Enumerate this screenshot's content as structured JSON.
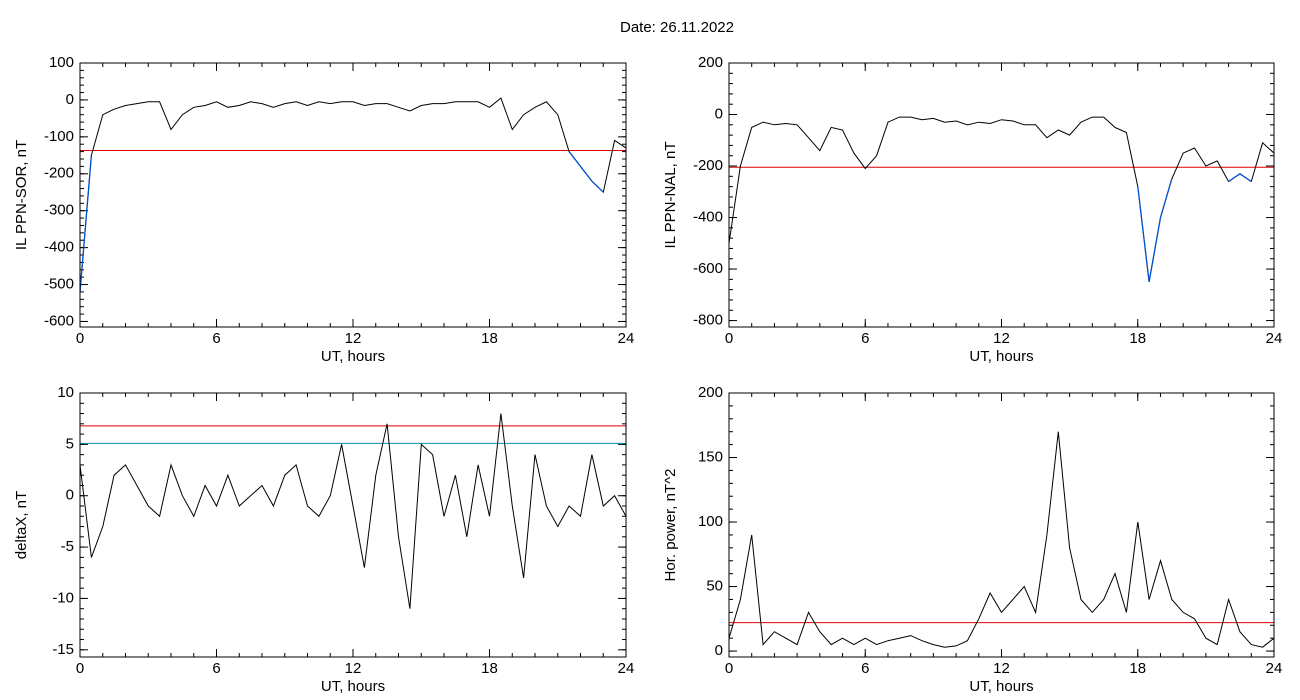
{
  "title": "Date:  26.11.2022",
  "chart_data": [
    {
      "type": "line",
      "xlabel": "UT, hours",
      "ylabel": "IL PPN-SOR, nT",
      "xlim": [
        0,
        24
      ],
      "xticks": [
        0,
        6,
        12,
        18,
        24
      ],
      "ylim": [
        -615,
        100
      ],
      "yticks": [
        100,
        0,
        -100,
        -200,
        -300,
        -400,
        -500,
        -600
      ],
      "x": [
        0,
        0.5,
        1,
        1.5,
        2,
        2.5,
        3,
        3.5,
        4,
        4.5,
        5,
        5.5,
        6,
        6.5,
        7,
        7.5,
        8,
        8.5,
        9,
        9.5,
        10,
        10.5,
        11,
        11.5,
        12,
        12.5,
        13,
        13.5,
        14,
        14.5,
        15,
        15.5,
        16,
        16.5,
        17,
        17.5,
        18,
        18.5,
        19,
        19.5,
        20,
        20.5,
        21,
        21.5,
        22,
        22.5,
        23,
        23.5,
        24
      ],
      "series": [
        {
          "color": "#000000",
          "below_color": "#0050d0",
          "values": [
            -520,
            -150,
            -40,
            -25,
            -15,
            -10,
            -5,
            -5,
            -80,
            -40,
            -20,
            -15,
            -5,
            -20,
            -15,
            -5,
            -10,
            -20,
            -10,
            -5,
            -15,
            -5,
            -10,
            -5,
            -5,
            -15,
            -10,
            -10,
            -20,
            -30,
            -15,
            -10,
            -10,
            -5,
            -5,
            -5,
            -20,
            5,
            -80,
            -40,
            -20,
            -5,
            -40,
            -140,
            -180,
            -220,
            -250,
            -110,
            -130
          ]
        }
      ],
      "hlines": [
        {
          "value": -137,
          "color": "#e00000"
        }
      ]
    },
    {
      "type": "line",
      "xlabel": "UT, hours",
      "ylabel": "IL PPN-NAL, nT",
      "xlim": [
        0,
        24
      ],
      "xticks": [
        0,
        6,
        12,
        18,
        24
      ],
      "ylim": [
        -825,
        200
      ],
      "yticks": [
        200,
        0,
        -200,
        -400,
        -600,
        -800
      ],
      "x": [
        0,
        0.5,
        1,
        1.5,
        2,
        2.5,
        3,
        3.5,
        4,
        4.5,
        5,
        5.5,
        6,
        6.5,
        7,
        7.5,
        8,
        8.5,
        9,
        9.5,
        10,
        10.5,
        11,
        11.5,
        12,
        12.5,
        13,
        13.5,
        14,
        14.5,
        15,
        15.5,
        16,
        16.5,
        17,
        17.5,
        18,
        18.5,
        19,
        19.5,
        20,
        20.5,
        21,
        21.5,
        22,
        22.5,
        23,
        23.5,
        24
      ],
      "series": [
        {
          "color": "#000000",
          "below_color": "#0050d0",
          "values": [
            -500,
            -200,
            -50,
            -30,
            -40,
            -35,
            -40,
            -90,
            -140,
            -50,
            -60,
            -150,
            -210,
            -160,
            -30,
            -10,
            -10,
            -20,
            -15,
            -30,
            -25,
            -40,
            -30,
            -35,
            -20,
            -25,
            -40,
            -40,
            -90,
            -60,
            -80,
            -30,
            -10,
            -10,
            -50,
            -70,
            -280,
            -650,
            -400,
            -250,
            -150,
            -130,
            -200,
            -180,
            -260,
            -230,
            -260,
            -110,
            -150
          ]
        }
      ],
      "hlines": [
        {
          "value": -205,
          "color": "#e00000"
        }
      ]
    },
    {
      "type": "line",
      "xlabel": "UT, hours",
      "ylabel": "deltaX, nT",
      "xlim": [
        0,
        24
      ],
      "xticks": [
        0,
        6,
        12,
        18,
        24
      ],
      "ylim": [
        -15.7,
        10
      ],
      "yticks": [
        10,
        5,
        0,
        -5,
        -10,
        -15
      ],
      "x": [
        0,
        0.5,
        1,
        1.5,
        2,
        2.5,
        3,
        3.5,
        4,
        4.5,
        5,
        5.5,
        6,
        6.5,
        7,
        7.5,
        8,
        8.5,
        9,
        9.5,
        10,
        10.5,
        11,
        11.5,
        12,
        12.5,
        13,
        13.5,
        14,
        14.5,
        15,
        15.5,
        16,
        16.5,
        17,
        17.5,
        18,
        18.5,
        19,
        19.5,
        20,
        20.5,
        21,
        21.5,
        22,
        22.5,
        23,
        23.5,
        24
      ],
      "series": [
        {
          "color": "#000000",
          "values": [
            3,
            -6,
            -3,
            2,
            3,
            1,
            -1,
            -2,
            3,
            0,
            -2,
            1,
            -1,
            2,
            -1,
            0,
            1,
            -1,
            2,
            3,
            -1,
            -2,
            0,
            5,
            -1,
            -7,
            2,
            7,
            -4,
            -11,
            5,
            4,
            -2,
            2,
            -4,
            3,
            -2,
            8,
            -1,
            -8,
            4,
            -1,
            -3,
            -1,
            -2,
            4,
            -1,
            0,
            -2
          ]
        }
      ],
      "hlines": [
        {
          "value": 6.8,
          "color": "#e00000"
        },
        {
          "value": 5.1,
          "color": "#0090b0"
        }
      ]
    },
    {
      "type": "line",
      "xlabel": "UT, hours",
      "ylabel": "Hor. power, nT^2",
      "xlim": [
        0,
        24
      ],
      "xticks": [
        0,
        6,
        12,
        18,
        24
      ],
      "ylim": [
        -4.6,
        200
      ],
      "yticks": [
        200,
        150,
        100,
        50,
        0
      ],
      "x": [
        0,
        0.5,
        1,
        1.5,
        2,
        2.5,
        3,
        3.5,
        4,
        4.5,
        5,
        5.5,
        6,
        6.5,
        7,
        7.5,
        8,
        8.5,
        9,
        9.5,
        10,
        10.5,
        11,
        11.5,
        12,
        12.5,
        13,
        13.5,
        14,
        14.5,
        15,
        15.5,
        16,
        16.5,
        17,
        17.5,
        18,
        18.5,
        19,
        19.5,
        20,
        20.5,
        21,
        21.5,
        22,
        22.5,
        23,
        23.5,
        24
      ],
      "series": [
        {
          "color": "#000000",
          "values": [
            10,
            40,
            90,
            5,
            15,
            10,
            5,
            30,
            15,
            5,
            10,
            5,
            10,
            5,
            8,
            10,
            12,
            8,
            5,
            3,
            4,
            8,
            25,
            45,
            30,
            40,
            50,
            30,
            90,
            170,
            80,
            40,
            30,
            40,
            60,
            30,
            100,
            40,
            70,
            40,
            30,
            25,
            10,
            5,
            40,
            15,
            5,
            3,
            10
          ]
        }
      ],
      "hlines": [
        {
          "value": 22,
          "color": "#e00000"
        }
      ]
    }
  ]
}
